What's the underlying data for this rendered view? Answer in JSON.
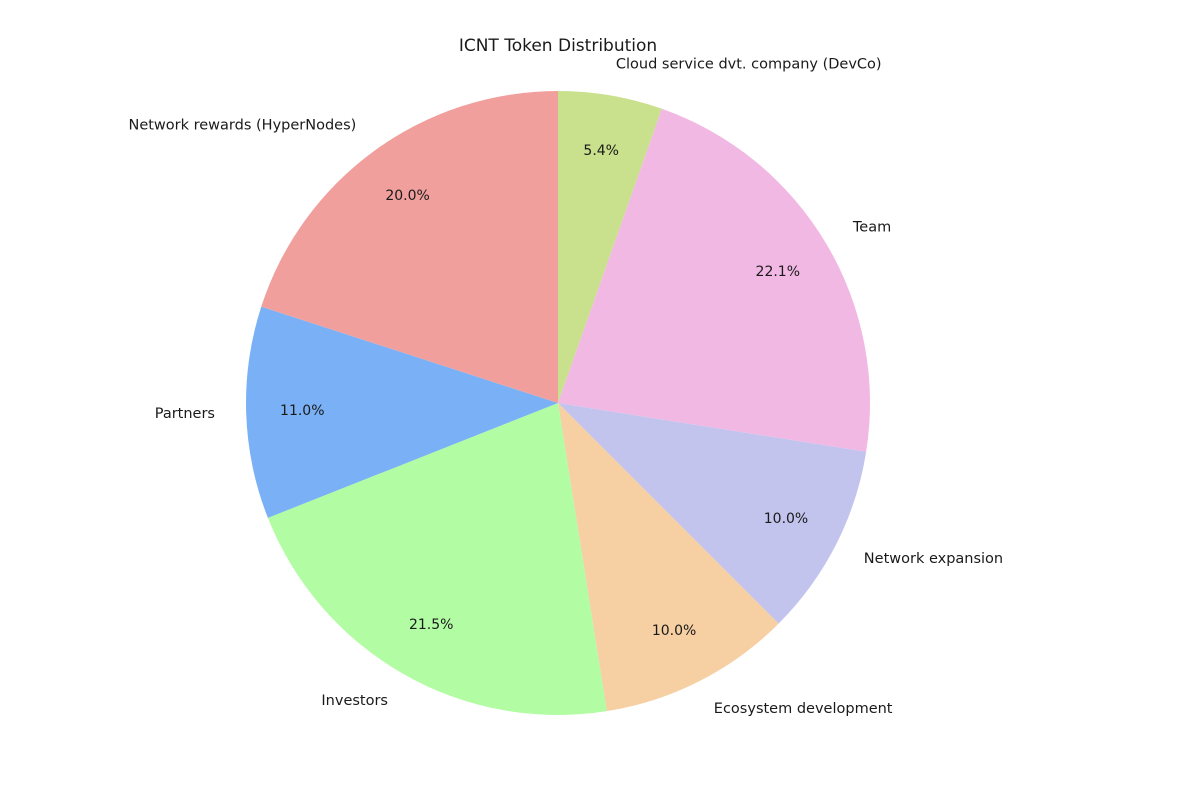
{
  "chart_data": {
    "type": "pie",
    "title": "ICNT Token Distribution",
    "start_angle_deg": 90,
    "direction": "clockwise",
    "slices": [
      {
        "label": "Cloud service dvt. company (DevCo)",
        "value": 5.4,
        "pct_label": "5.4%",
        "color": "#c9e08c"
      },
      {
        "label": "Team",
        "value": 22.1,
        "pct_label": "22.1%",
        "color": "#f2b8e4"
      },
      {
        "label": "Network expansion",
        "value": 10.0,
        "pct_label": "10.0%",
        "color": "#c3c4ed"
      },
      {
        "label": "Ecosystem development",
        "value": 10.0,
        "pct_label": "10.0%",
        "color": "#f6cfa2"
      },
      {
        "label": "Investors",
        "value": 21.5,
        "pct_label": "21.5%",
        "color": "#b2fca3"
      },
      {
        "label": "Partners",
        "value": 11.0,
        "pct_label": "11.0%",
        "color": "#7ab1f6"
      },
      {
        "label": "Network rewards (HyperNodes)",
        "value": 20.0,
        "pct_label": "20.0%",
        "color": "#f09f9c"
      }
    ]
  }
}
